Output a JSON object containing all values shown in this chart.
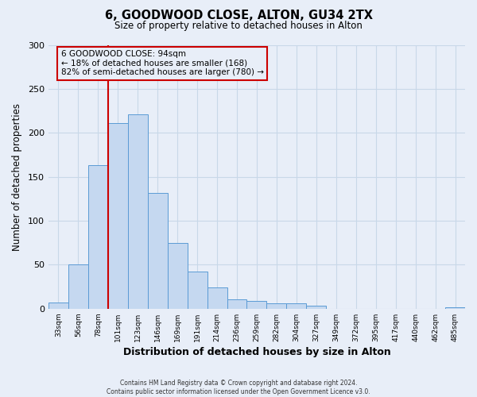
{
  "title": "6, GOODWOOD CLOSE, ALTON, GU34 2TX",
  "subtitle": "Size of property relative to detached houses in Alton",
  "xlabel": "Distribution of detached houses by size in Alton",
  "ylabel": "Number of detached properties",
  "footnote1": "Contains HM Land Registry data © Crown copyright and database right 2024.",
  "footnote2": "Contains public sector information licensed under the Open Government Licence v3.0.",
  "bin_labels": [
    "33sqm",
    "56sqm",
    "78sqm",
    "101sqm",
    "123sqm",
    "146sqm",
    "169sqm",
    "191sqm",
    "214sqm",
    "236sqm",
    "259sqm",
    "282sqm",
    "304sqm",
    "327sqm",
    "349sqm",
    "372sqm",
    "395sqm",
    "417sqm",
    "440sqm",
    "462sqm",
    "485sqm"
  ],
  "bar_values": [
    7,
    50,
    163,
    211,
    221,
    132,
    75,
    42,
    24,
    11,
    9,
    6,
    6,
    3,
    0,
    0,
    0,
    0,
    0,
    0,
    2
  ],
  "bar_color": "#c5d8f0",
  "bar_edge_color": "#5b9bd5",
  "ylim": [
    0,
    300
  ],
  "yticks": [
    0,
    50,
    100,
    150,
    200,
    250,
    300
  ],
  "vline_color": "#cc0000",
  "annotation_title": "6 GOODWOOD CLOSE: 94sqm",
  "annotation_line1": "← 18% of detached houses are smaller (168)",
  "annotation_line2": "82% of semi-detached houses are larger (780) →",
  "annotation_box_color": "#cc0000",
  "background_color": "#e8eef8"
}
